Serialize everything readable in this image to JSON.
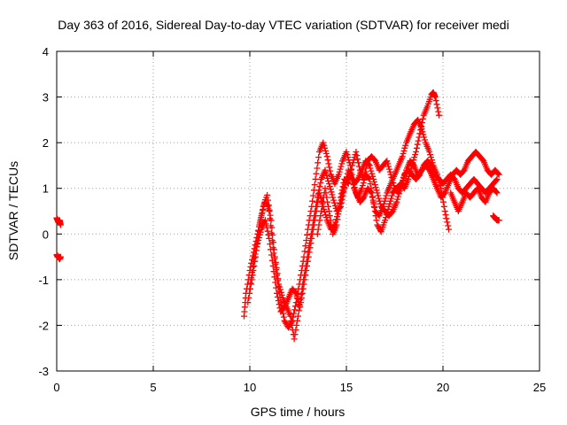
{
  "chart_data": {
    "type": "scatter",
    "title": "Day 363 of 2016, Sidereal Day-to-day VTEC variation (SDTVAR) for receiver medi",
    "xlabel": "GPS time / hours",
    "ylabel": "SDTVAR / TECUs",
    "xlim": [
      0,
      25
    ],
    "ylim": [
      -3,
      4
    ],
    "xticks": [
      "0",
      "5",
      "10",
      "15",
      "20",
      "25"
    ],
    "yticks": [
      "-3",
      "-2",
      "-1",
      "0",
      "1",
      "2",
      "3",
      "4"
    ],
    "grid": true,
    "marker": "+",
    "color": "#ff0000",
    "series": [
      {
        "name": "",
        "tracks": [
          [
            [
              0.0,
              0.35
            ],
            [
              0.05,
              0.3
            ],
            [
              0.1,
              0.25
            ],
            [
              0.15,
              0.3
            ],
            [
              0.2,
              0.2
            ]
          ],
          [
            [
              0.0,
              -0.45
            ],
            [
              0.05,
              -0.5
            ],
            [
              0.1,
              -0.5
            ],
            [
              0.15,
              -0.55
            ],
            [
              0.2,
              -0.5
            ]
          ],
          [
            [
              9.7,
              -1.8
            ],
            [
              9.8,
              -1.3
            ],
            [
              10.0,
              -0.8
            ],
            [
              10.2,
              -0.4
            ],
            [
              10.4,
              0.0
            ],
            [
              10.6,
              0.4
            ],
            [
              10.8,
              0.75
            ],
            [
              11.0,
              0.5
            ],
            [
              11.2,
              -0.3
            ],
            [
              11.4,
              -0.9
            ],
            [
              11.6,
              -1.5
            ],
            [
              11.8,
              -1.9
            ],
            [
              12.0,
              -2.05
            ],
            [
              12.2,
              -1.9
            ],
            [
              12.4,
              -1.5
            ],
            [
              12.6,
              -1.0
            ],
            [
              12.8,
              -0.5
            ],
            [
              13.0,
              0.1
            ],
            [
              13.2,
              0.6
            ],
            [
              13.4,
              1.2
            ],
            [
              13.6,
              1.8
            ],
            [
              13.8,
              2.0
            ],
            [
              14.0,
              1.7
            ],
            [
              14.2,
              1.3
            ],
            [
              14.4,
              1.1
            ],
            [
              14.6,
              1.3
            ],
            [
              14.8,
              1.6
            ],
            [
              15.0,
              1.8
            ],
            [
              15.2,
              1.5
            ],
            [
              15.4,
              1.0
            ],
            [
              15.6,
              0.8
            ],
            [
              15.8,
              1.0
            ],
            [
              16.0,
              1.3
            ],
            [
              16.2,
              1.2
            ],
            [
              16.4,
              0.7
            ],
            [
              16.6,
              0.2
            ],
            [
              16.8,
              0.05
            ],
            [
              17.0,
              0.3
            ],
            [
              17.2,
              0.6
            ],
            [
              17.4,
              0.9
            ],
            [
              17.6,
              1.0
            ],
            [
              17.8,
              1.1
            ],
            [
              18.0,
              1.0
            ],
            [
              18.2,
              1.2
            ],
            [
              18.4,
              1.5
            ],
            [
              18.6,
              1.8
            ],
            [
              18.8,
              2.2
            ],
            [
              19.0,
              2.6
            ],
            [
              19.2,
              2.8
            ],
            [
              19.4,
              3.05
            ],
            [
              19.5,
              3.1
            ],
            [
              19.6,
              3.0
            ],
            [
              19.8,
              2.6
            ]
          ],
          [
            [
              9.9,
              -1.5
            ],
            [
              10.1,
              -1.0
            ],
            [
              10.3,
              -0.5
            ],
            [
              10.5,
              0.2
            ],
            [
              10.7,
              0.6
            ],
            [
              10.9,
              0.85
            ],
            [
              11.1,
              0.3
            ],
            [
              11.3,
              -0.5
            ],
            [
              11.5,
              -1.1
            ],
            [
              11.7,
              -1.4
            ],
            [
              11.9,
              -1.6
            ],
            [
              12.1,
              -1.8
            ],
            [
              12.3,
              -2.3
            ],
            [
              12.5,
              -1.8
            ],
            [
              12.7,
              -1.2
            ],
            [
              12.9,
              -0.7
            ],
            [
              13.1,
              -0.2
            ],
            [
              13.3,
              0.3
            ],
            [
              13.5,
              0.8
            ],
            [
              13.7,
              1.2
            ],
            [
              13.9,
              1.4
            ],
            [
              14.1,
              1.1
            ],
            [
              14.3,
              0.8
            ],
            [
              14.5,
              0.5
            ],
            [
              14.7,
              0.6
            ],
            [
              14.9,
              1.0
            ],
            [
              15.1,
              1.4
            ],
            [
              15.3,
              1.2
            ],
            [
              15.5,
              0.9
            ],
            [
              15.7,
              0.7
            ],
            [
              15.9,
              0.8
            ],
            [
              16.1,
              1.0
            ],
            [
              16.3,
              0.9
            ],
            [
              16.5,
              0.5
            ],
            [
              16.7,
              0.4
            ],
            [
              16.9,
              0.6
            ],
            [
              17.1,
              0.9
            ],
            [
              17.3,
              1.1
            ],
            [
              17.5,
              1.3
            ],
            [
              17.7,
              1.5
            ],
            [
              17.9,
              1.7
            ],
            [
              18.1,
              2.0
            ],
            [
              18.3,
              2.2
            ],
            [
              18.5,
              2.4
            ],
            [
              18.7,
              2.5
            ],
            [
              18.9,
              2.3
            ],
            [
              19.1,
              2.0
            ],
            [
              19.3,
              1.8
            ],
            [
              19.5,
              1.5
            ],
            [
              19.7,
              1.3
            ],
            [
              19.9,
              1.0
            ],
            [
              20.1,
              0.5
            ],
            [
              20.3,
              0.1
            ]
          ],
          [
            [
              10.0,
              -1.2
            ],
            [
              10.2,
              -0.6
            ],
            [
              10.4,
              -0.2
            ],
            [
              10.6,
              0.1
            ],
            [
              10.8,
              0.3
            ],
            [
              11.0,
              -0.1
            ],
            [
              11.2,
              -0.7
            ],
            [
              11.4,
              -1.3
            ],
            [
              11.6,
              -1.7
            ],
            [
              11.8,
              -1.6
            ],
            [
              12.0,
              -1.4
            ],
            [
              12.2,
              -1.2
            ],
            [
              12.4,
              -1.3
            ],
            [
              12.6,
              -1.6
            ],
            [
              12.8,
              -1.1
            ],
            [
              13.0,
              -0.6
            ],
            [
              13.2,
              -0.1
            ],
            [
              13.4,
              0.4
            ],
            [
              13.6,
              0.9
            ],
            [
              13.8,
              0.6
            ],
            [
              14.0,
              0.3
            ],
            [
              14.2,
              0.1
            ],
            [
              14.4,
              0.2
            ],
            [
              14.6,
              0.5
            ],
            [
              14.8,
              0.9
            ],
            [
              15.0,
              1.2
            ],
            [
              15.2,
              1.3
            ],
            [
              15.4,
              1.1
            ],
            [
              15.6,
              1.2
            ],
            [
              15.8,
              1.4
            ],
            [
              16.0,
              1.6
            ],
            [
              16.2,
              1.5
            ],
            [
              16.4,
              1.2
            ],
            [
              16.6,
              0.9
            ],
            [
              16.8,
              0.6
            ],
            [
              17.0,
              0.5
            ],
            [
              17.2,
              0.4
            ],
            [
              17.4,
              0.5
            ],
            [
              17.6,
              0.7
            ],
            [
              17.8,
              1.0
            ],
            [
              18.0,
              1.3
            ],
            [
              18.2,
              1.4
            ],
            [
              18.4,
              1.3
            ],
            [
              18.6,
              1.2
            ],
            [
              18.8,
              1.3
            ],
            [
              19.0,
              1.5
            ],
            [
              19.2,
              1.6
            ],
            [
              19.4,
              1.5
            ],
            [
              19.6,
              1.3
            ],
            [
              19.8,
              1.2
            ],
            [
              20.0,
              1.1
            ],
            [
              20.2,
              1.2
            ],
            [
              20.4,
              1.3
            ],
            [
              20.6,
              1.2
            ],
            [
              20.8,
              1.0
            ],
            [
              21.0,
              0.9
            ],
            [
              21.2,
              1.0
            ],
            [
              21.4,
              1.1
            ],
            [
              21.6,
              1.2
            ],
            [
              21.8,
              1.1
            ],
            [
              22.0,
              1.0
            ],
            [
              22.2,
              0.9
            ],
            [
              22.4,
              1.0
            ],
            [
              22.6,
              1.1
            ],
            [
              22.8,
              1.2
            ]
          ],
          [
            [
              13.5,
              0.0
            ],
            [
              13.7,
              0.5
            ],
            [
              13.9,
              1.0
            ],
            [
              14.1,
              0.5
            ],
            [
              14.3,
              0.0
            ],
            [
              14.5,
              0.2
            ],
            [
              14.7,
              0.8
            ],
            [
              14.9,
              1.2
            ],
            [
              15.1,
              1.1
            ],
            [
              15.3,
              1.5
            ],
            [
              15.5,
              1.8
            ],
            [
              15.7,
              1.4
            ],
            [
              15.9,
              1.2
            ],
            [
              16.1,
              1.6
            ],
            [
              16.3,
              1.7
            ],
            [
              16.5,
              1.6
            ],
            [
              16.7,
              1.4
            ],
            [
              16.9,
              1.5
            ],
            [
              17.1,
              1.6
            ],
            [
              17.3,
              1.3
            ],
            [
              17.5,
              1.0
            ],
            [
              17.7,
              0.9
            ],
            [
              17.9,
              1.1
            ],
            [
              18.1,
              1.4
            ],
            [
              18.3,
              1.6
            ],
            [
              18.5,
              1.5
            ],
            [
              18.7,
              1.3
            ],
            [
              18.9,
              1.4
            ],
            [
              19.1,
              1.5
            ],
            [
              19.3,
              1.4
            ],
            [
              19.5,
              1.2
            ],
            [
              19.7,
              1.0
            ],
            [
              19.9,
              0.8
            ],
            [
              20.1,
              0.9
            ],
            [
              20.3,
              1.1
            ],
            [
              20.5,
              1.3
            ],
            [
              20.7,
              1.4
            ],
            [
              20.9,
              1.3
            ],
            [
              21.1,
              1.4
            ],
            [
              21.3,
              1.6
            ],
            [
              21.5,
              1.7
            ],
            [
              21.7,
              1.8
            ],
            [
              21.9,
              1.7
            ],
            [
              22.1,
              1.6
            ],
            [
              22.3,
              1.4
            ],
            [
              22.5,
              1.3
            ],
            [
              22.7,
              1.4
            ],
            [
              22.9,
              1.3
            ]
          ],
          [
            [
              20.4,
              0.9
            ],
            [
              20.6,
              0.7
            ],
            [
              20.8,
              0.5
            ],
            [
              21.0,
              0.7
            ],
            [
              21.2,
              0.9
            ],
            [
              21.4,
              0.8
            ],
            [
              21.6,
              0.9
            ],
            [
              21.8,
              1.0
            ],
            [
              22.0,
              0.8
            ],
            [
              22.2,
              0.7
            ],
            [
              22.4,
              0.9
            ],
            [
              22.6,
              1.0
            ],
            [
              22.8,
              0.9
            ]
          ],
          [
            [
              22.6,
              0.4
            ],
            [
              22.7,
              0.35
            ],
            [
              22.8,
              0.3
            ],
            [
              22.9,
              0.3
            ]
          ]
        ]
      }
    ]
  }
}
